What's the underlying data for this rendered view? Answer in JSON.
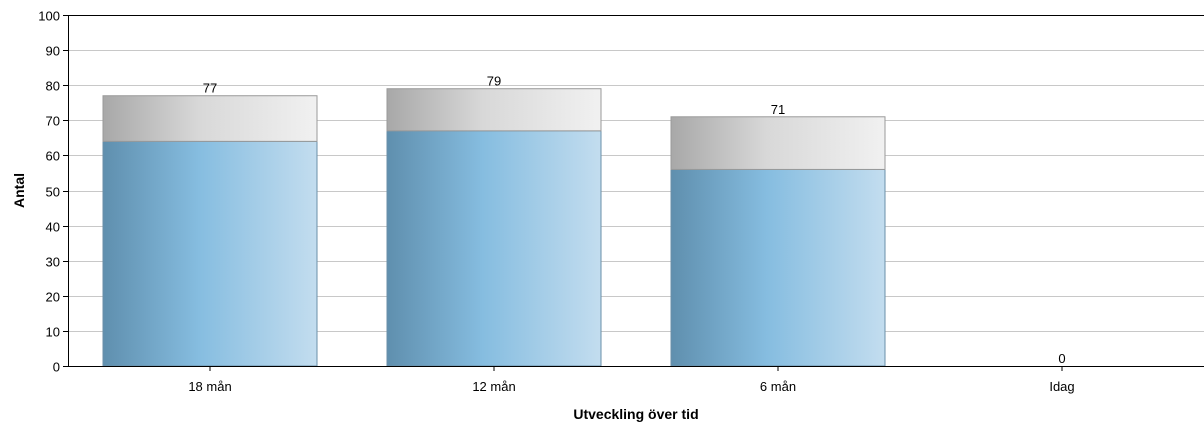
{
  "chart_data": {
    "type": "bar",
    "title": "",
    "xlabel": "Utveckling över tid",
    "ylabel": "Antal",
    "ylim": [
      0,
      100
    ],
    "yticks": [
      0,
      10,
      20,
      30,
      40,
      50,
      60,
      70,
      80,
      90,
      100
    ],
    "grid": true,
    "categories": [
      "18 mån",
      "12 mån",
      "6 mån",
      "Idag"
    ],
    "series": [
      {
        "values": [
          64,
          67,
          56,
          0
        ],
        "color": "#7fb3d8"
      },
      {
        "values": [
          13,
          12,
          15,
          0
        ],
        "color": "#d9d9d9"
      }
    ],
    "totals": [
      77,
      79,
      71,
      0
    ]
  }
}
